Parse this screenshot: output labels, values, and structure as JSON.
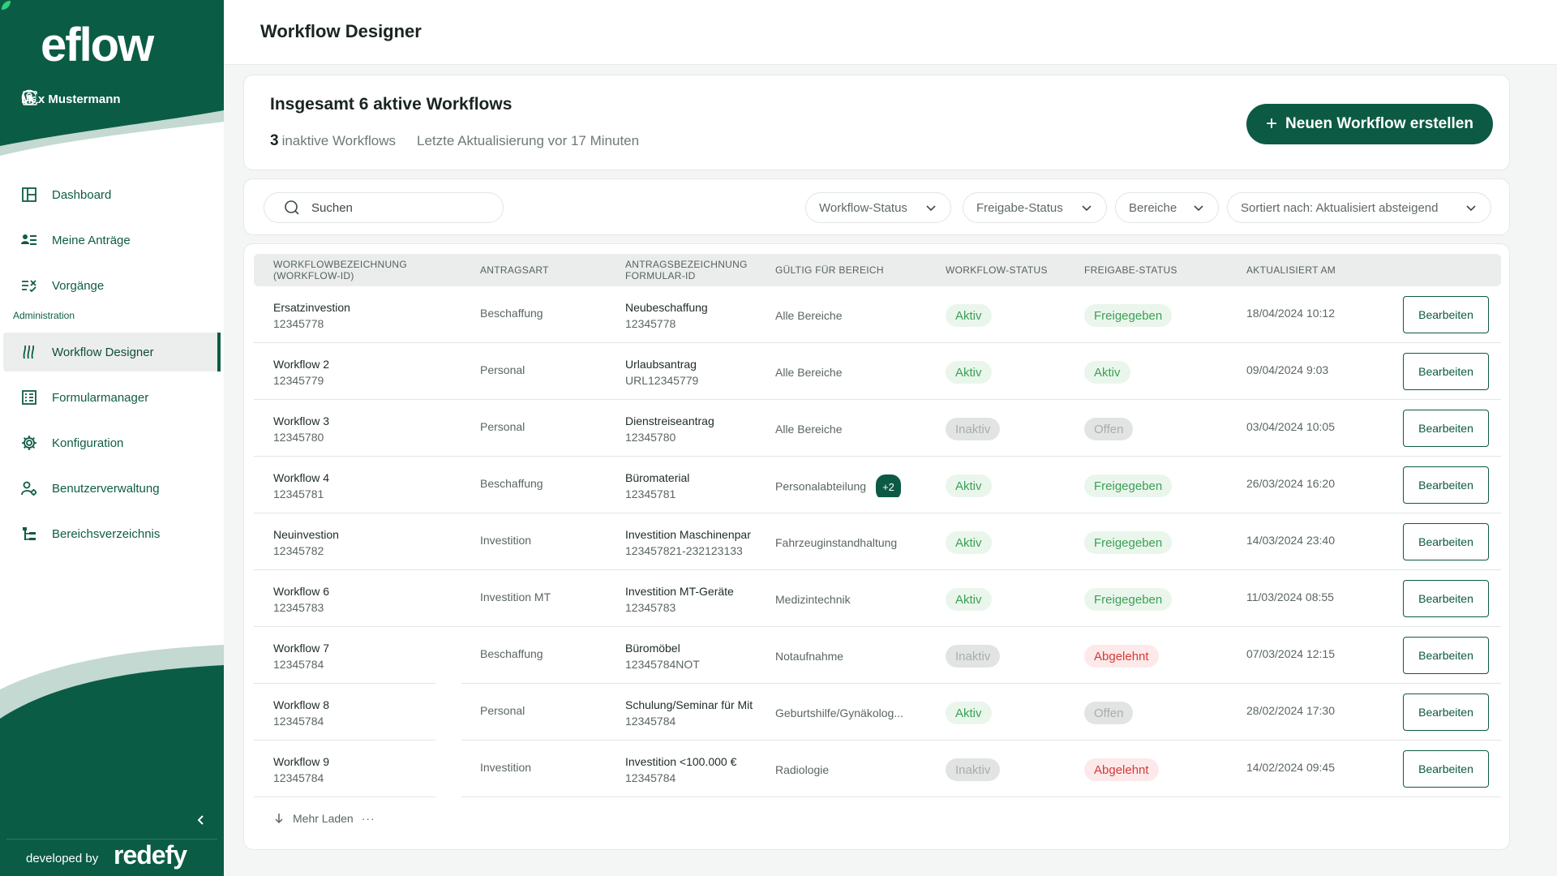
{
  "brand": {
    "logo": "eflow",
    "developed_by": "developed by",
    "partner": "redefy"
  },
  "user": {
    "name": "Max Mustermann"
  },
  "nav": {
    "items": [
      {
        "label": "Dashboard",
        "icon": "dashboard-icon"
      },
      {
        "label": "Meine Anträge",
        "icon": "list-user-icon"
      },
      {
        "label": "Vorgänge",
        "icon": "tasks-icon"
      }
    ],
    "section": "Administration",
    "admin_items": [
      {
        "label": "Workflow Designer",
        "icon": "workflow-icon",
        "active": true
      },
      {
        "label": "Formularmanager",
        "icon": "form-icon"
      },
      {
        "label": "Konfiguration",
        "icon": "gear-icon"
      },
      {
        "label": "Benutzerverwaltung",
        "icon": "user-settings-icon"
      },
      {
        "label": "Bereichsverzeichnis",
        "icon": "tree-icon"
      }
    ]
  },
  "header": {
    "title": "Workflow Designer"
  },
  "summary": {
    "heading": "Insgesamt 6 aktive Workflows",
    "inactive_count": "3",
    "inactive_label": "inaktive Workflows",
    "updated": "Letzte Aktualisierung vor 17 Minuten",
    "new_button": "Neuen Workflow erstellen"
  },
  "filters": {
    "search_placeholder": "Suchen",
    "workflow_status": "Workflow-Status",
    "release_status": "Freigabe-Status",
    "areas": "Bereiche",
    "sort": "Sortiert nach: Aktualisiert absteigend"
  },
  "table": {
    "headers": {
      "name_1": "WORKFLOWBEZEICHNUNG",
      "name_2": "(WORKFLOW-ID)",
      "type": "ANTRAGSART",
      "form_1": "ANTRAGSBEZEICHNUNG",
      "form_2": "FORMULAR-ID",
      "area": "GÜLTIG FÜR BEREICH",
      "wf_status": "WORKFLOW-STATUS",
      "rel_status": "FREIGABE-STATUS",
      "updated": "AKTUALISIERT AM"
    },
    "edit_label": "Bearbeiten",
    "rows": [
      {
        "name": "Ersatzinvestion",
        "id": "12345778",
        "type": "Beschaffung",
        "form": "Neubeschaffung",
        "form_id": "12345778",
        "area": "Alle Bereiche",
        "extra": "",
        "wf": "Aktiv",
        "rel": "Freigegeben",
        "date": "18/04/2024 10:12"
      },
      {
        "name": "Workflow 2",
        "id": "12345779",
        "type": "Personal",
        "form": "Urlaubsantrag",
        "form_id": "URL12345779",
        "area": "Alle Bereiche",
        "extra": "",
        "wf": "Aktiv",
        "rel": "Aktiv",
        "date": "09/04/2024 9:03"
      },
      {
        "name": "Workflow 3",
        "id": "12345780",
        "type": "Personal",
        "form": "Dienstreiseantrag",
        "form_id": "12345780",
        "area": "Alle Bereiche",
        "extra": "",
        "wf": "Inaktiv",
        "rel": "Offen",
        "date": "03/04/2024 10:05"
      },
      {
        "name": "Workflow 4",
        "id": "12345781",
        "type": "Beschaffung",
        "form": "Büromaterial",
        "form_id": "12345781",
        "area": "Personalabteilung",
        "extra": "+2",
        "wf": "Aktiv",
        "rel": "Freigegeben",
        "date": "26/03/2024 16:20"
      },
      {
        "name": "Neuinvestion",
        "id": "12345782",
        "type": "Investition",
        "form": "Investition Maschinenpar",
        "form_id": "123457821-232123133",
        "area": "Fahrzeuginstandhaltung",
        "extra": "",
        "wf": "Aktiv",
        "rel": "Freigegeben",
        "date": "14/03/2024 23:40"
      },
      {
        "name": "Workflow 6",
        "id": "12345783",
        "type": "Investition MT",
        "form": "Investition MT-Geräte",
        "form_id": "12345783",
        "area": "Medizintechnik",
        "extra": "",
        "wf": "Aktiv",
        "rel": "Freigegeben",
        "date": "11/03/2024 08:55"
      },
      {
        "name": "Workflow 7",
        "id": "12345784",
        "type": "Beschaffung",
        "form": "Büromöbel",
        "form_id": "12345784NOT",
        "area": "Notaufnahme",
        "extra": "",
        "wf": "Inaktiv",
        "rel": "Abgelehnt",
        "date": "07/03/2024 12:15"
      },
      {
        "name": "Workflow 8",
        "id": "12345784",
        "type": "Personal",
        "form": "Schulung/Seminar für Mit",
        "form_id": "12345784",
        "area": "Geburtshilfe/Gynäkolog...",
        "extra": "",
        "wf": "Aktiv",
        "rel": "Offen",
        "date": "28/02/2024 17:30"
      },
      {
        "name": "Workflow 9",
        "id": "12345784",
        "type": "Investition",
        "form": "Investition <100.000 €",
        "form_id": "12345784",
        "area": "Radiologie",
        "extra": "",
        "wf": "Inaktiv",
        "rel": "Abgelehnt",
        "date": "14/02/2024 09:45"
      }
    ],
    "load_more": "Mehr Laden",
    "load_more_dots": "···"
  },
  "colors": {
    "brand": "#0c5a43",
    "active": "#3aa055",
    "declined": "#d43a3a",
    "inactive": "#a6adab"
  }
}
